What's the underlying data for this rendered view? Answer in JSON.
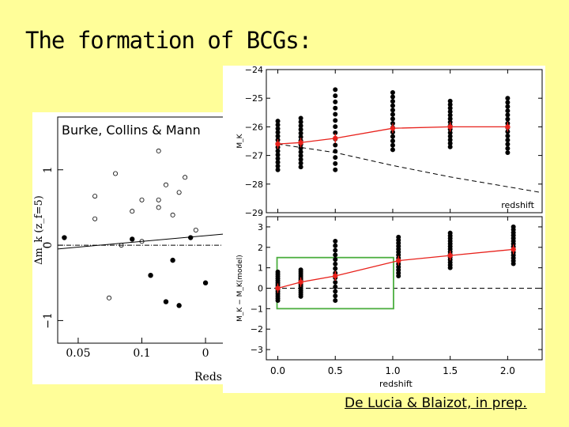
{
  "slide": {
    "title": "The formation of BCGs:",
    "credit_left": "Burke, Collins & Mann",
    "credit_right": "De Lucia & Blaizot, in prep."
  },
  "chart_data": [
    {
      "type": "scatter",
      "ylabel": "Δm_k (z_f=5)",
      "xlabel": "Reds",
      "xticks": [
        "0.05",
        "0.1",
        "0"
      ],
      "yticks": [
        "−1",
        "0",
        "1"
      ],
      "x_scale": "log",
      "series": [
        {
          "marker": "open-circle",
          "points": [
            [
              0.06,
              0.65
            ],
            [
              0.075,
              0.95
            ],
            [
              0.12,
              1.25
            ],
            [
              0.06,
              0.35
            ],
            [
              0.09,
              0.45
            ],
            [
              0.1,
              0.6
            ],
            [
              0.12,
              0.6
            ],
            [
              0.13,
              0.8
            ],
            [
              0.15,
              0.7
            ],
            [
              0.14,
              0.4
            ],
            [
              0.16,
              0.9
            ],
            [
              0.08,
              0.0
            ],
            [
              0.1,
              0.05
            ],
            [
              0.12,
              0.5
            ],
            [
              0.18,
              0.2
            ],
            [
              0.07,
              -0.7
            ],
            [
              0.11,
              -0.4
            ]
          ]
        },
        {
          "marker": "filled-circle",
          "points": [
            [
              0.043,
              0.1
            ],
            [
              0.09,
              0.08
            ],
            [
              0.11,
              -0.4
            ],
            [
              0.13,
              -0.75
            ],
            [
              0.15,
              -0.8
            ],
            [
              0.17,
              0.1
            ],
            [
              0.2,
              -0.5
            ],
            [
              0.14,
              -0.2
            ]
          ]
        }
      ],
      "lines": [
        {
          "style": "solid",
          "y": [
            -0.05,
            0.15
          ]
        },
        {
          "style": "dash-dot",
          "y": [
            0.0,
            0.0
          ]
        }
      ]
    },
    {
      "type": "scatter",
      "ylabel": "M_K",
      "xlabel": "redshift",
      "xlim": [
        -0.1,
        2.3
      ],
      "ylim": [
        -24,
        -29
      ],
      "yticks": [
        "−24",
        "−25",
        "−26",
        "−27",
        "−28",
        "−29"
      ],
      "means": {
        "x": [
          0.0,
          0.2,
          0.5,
          1.0,
          1.5,
          2.0
        ],
        "y": [
          -26.6,
          -26.55,
          -26.4,
          -26.05,
          -26.0,
          -26.0
        ]
      },
      "scatter_ranges": [
        {
          "x": 0.0,
          "ymin": -27.5,
          "ymax": -25.8
        },
        {
          "x": 0.2,
          "ymin": -27.4,
          "ymax": -25.7
        },
        {
          "x": 0.5,
          "ymin": -27.5,
          "ymax": -24.7
        },
        {
          "x": 1.0,
          "ymin": -26.8,
          "ymax": -24.8
        },
        {
          "x": 1.5,
          "ymin": -26.7,
          "ymax": -25.1
        },
        {
          "x": 2.0,
          "ymin": -26.9,
          "ymax": -25.0
        }
      ],
      "dashed_model": {
        "x": [
          0.0,
          0.5,
          1.0,
          1.5,
          2.3
        ],
        "y": [
          -26.6,
          -26.9,
          -27.35,
          -27.75,
          -28.3
        ]
      }
    },
    {
      "type": "scatter",
      "ylabel": "M_K − M_K(model)",
      "xlabel": "redshift",
      "xlim": [
        -0.1,
        2.3
      ],
      "ylim": [
        3.5,
        -3.5
      ],
      "xticks": [
        "0.0",
        "0.5",
        "1.0",
        "1.5",
        "2.0"
      ],
      "yticks": [
        "3",
        "2",
        "1",
        "0",
        "−1",
        "−2",
        "−3"
      ],
      "means": {
        "x": [
          0.0,
          0.2,
          0.5,
          1.05,
          1.5,
          2.05
        ],
        "y": [
          0.0,
          0.3,
          0.6,
          1.35,
          1.6,
          1.9
        ]
      },
      "scatter_ranges": [
        {
          "x": 0.0,
          "ymin": -0.6,
          "ymax": 0.8
        },
        {
          "x": 0.2,
          "ymin": -0.4,
          "ymax": 0.9
        },
        {
          "x": 0.5,
          "ymin": -0.6,
          "ymax": 2.3
        },
        {
          "x": 1.05,
          "ymin": 0.6,
          "ymax": 2.5
        },
        {
          "x": 1.5,
          "ymin": 1.0,
          "ymax": 2.7
        },
        {
          "x": 2.05,
          "ymin": 1.2,
          "ymax": 3.0
        }
      ],
      "highlight_box": {
        "xmin": 0.0,
        "xmax": 1.0,
        "ymin": -1.0,
        "ymax": 1.5,
        "color": "#4cae3f"
      }
    }
  ]
}
